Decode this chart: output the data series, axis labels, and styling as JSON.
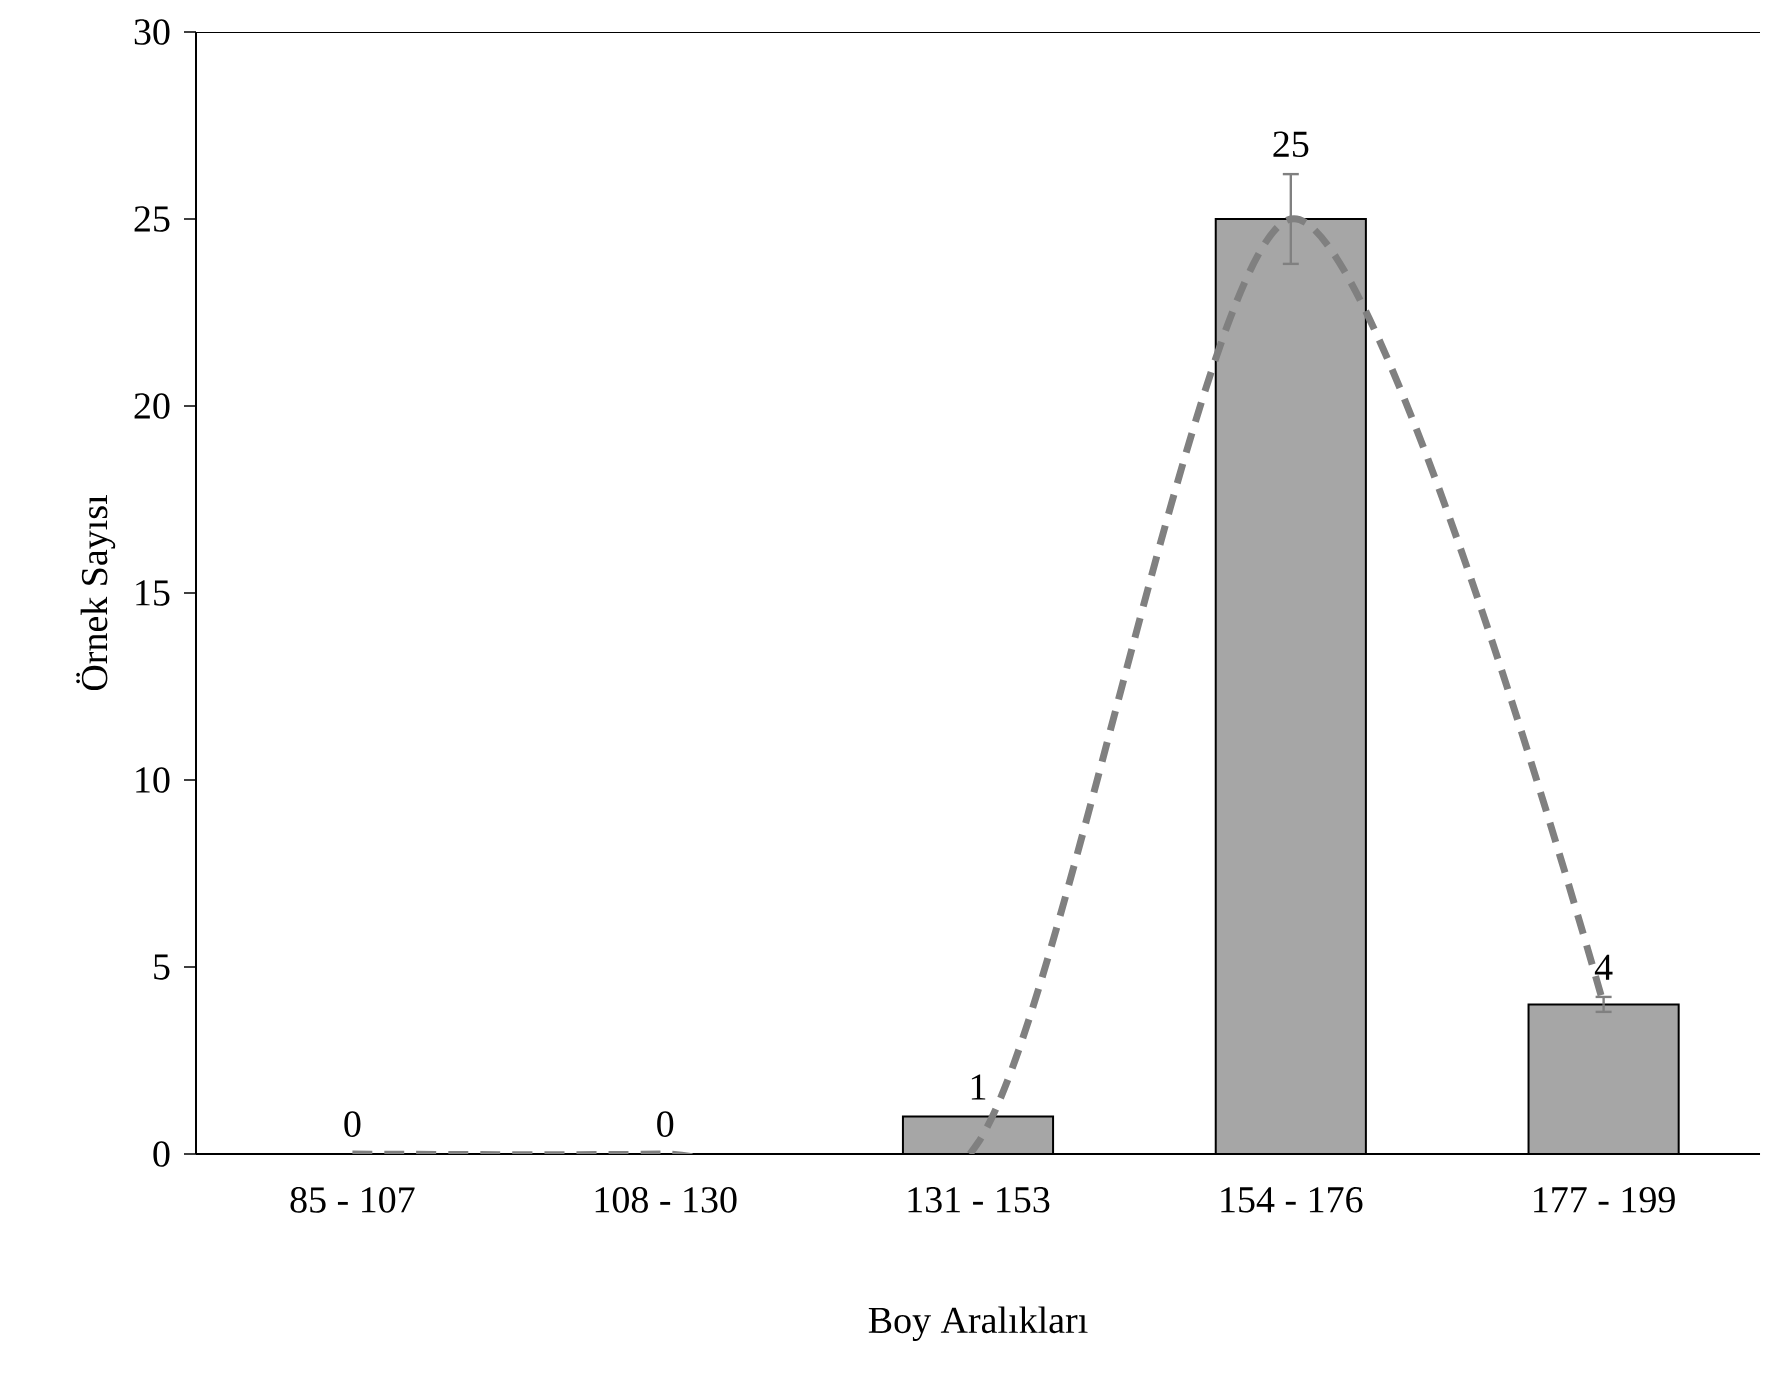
{
  "chart_data": {
    "type": "bar",
    "xlabel": "Boy Aralıkları",
    "ylabel": "Örnek Sayısı",
    "categories": [
      "85 - 107",
      "108 - 130",
      "131 - 153",
      "154 - 176",
      "177 - 199"
    ],
    "ylim": [
      0,
      30
    ],
    "yticks": [
      0,
      5,
      10,
      15,
      20,
      25,
      30
    ],
    "grid": false,
    "series": [
      {
        "color": "#a6a6a6",
        "values": [
          0,
          0,
          1,
          25,
          4
        ],
        "value_labels": [
          "0",
          "0",
          "1",
          "25",
          "4"
        ],
        "errors": [
          null,
          null,
          null,
          1.2,
          0.2
        ]
      },
      {
        "type": "line",
        "color": "#808080",
        "line_style": "dashed",
        "marker": "none",
        "values": [
          0,
          0,
          0.3,
          25,
          4
        ]
      }
    ]
  }
}
